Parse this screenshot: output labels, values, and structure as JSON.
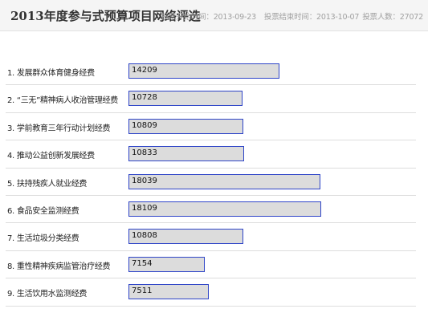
{
  "header": {
    "title": "2013年度参与式预算项目网络评选",
    "start_label": "投票开始时间：",
    "start_date": "2013-09-23",
    "end_label": "投票结束时间：",
    "end_date": "2013-10-07",
    "count_label": "投票人数：",
    "voter_count": "27072"
  },
  "chart_data": {
    "type": "bar",
    "orientation": "horizontal",
    "categories": [
      "1. 发展群众体育健身经费",
      "2. “三无”精神病人收治管理经费",
      "3. 学前教育三年行动计划经费",
      "4. 推动公益创新发展经费",
      "5. 扶持残疾人就业经费",
      "6. 食品安全监测经费",
      "7. 生活垃圾分类经费",
      "8. 重性精神疾病监管治疗经费",
      "9. 生活饮用水监测经费"
    ],
    "values": [
      14209,
      10728,
      10809,
      10833,
      18039,
      18109,
      10808,
      7154,
      7511
    ],
    "title": "",
    "xlabel": "",
    "ylabel": "",
    "colors": {
      "bar_fill": "#dcdcdc",
      "bar_border": "#2f45c8"
    }
  }
}
